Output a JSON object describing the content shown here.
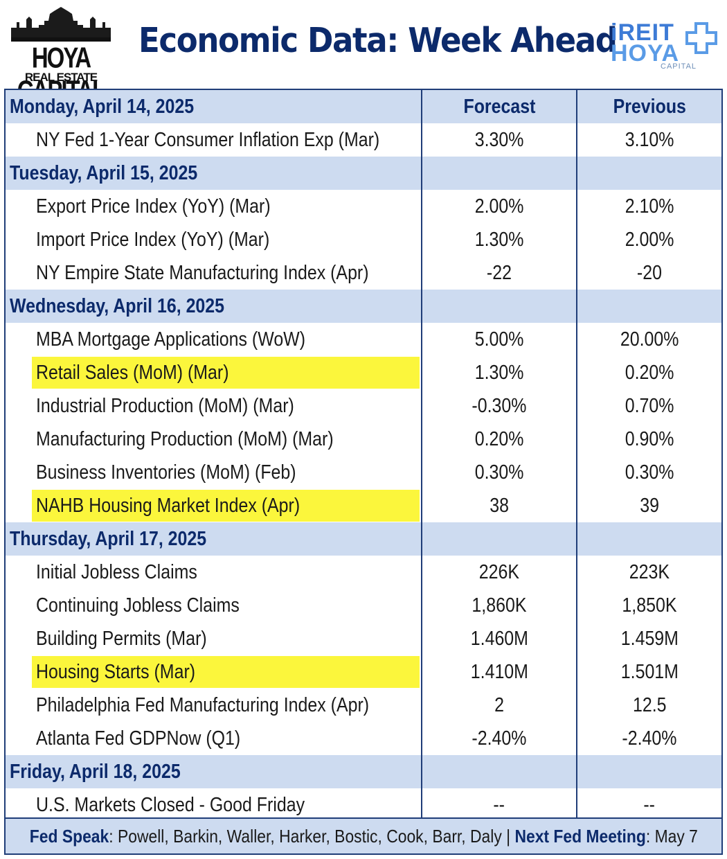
{
  "header": {
    "title": "Economic Data: Week Ahead",
    "logo_left": {
      "line1": "HOYA CAPITAL",
      "line2": "REAL ESTATE"
    },
    "logo_right": {
      "line1": "iREIT",
      "line2": "HOYA",
      "line3": "CAPITAL"
    }
  },
  "colors": {
    "title": "#0c2a6b",
    "day_row_bg": "#cddbf0",
    "highlight": "#fbf63c",
    "border": "#1f3d78"
  },
  "columns": {
    "forecast": "Forecast",
    "previous": "Previous"
  },
  "days": [
    {
      "label": "Monday, April 14, 2025",
      "events": [
        {
          "name": "NY Fed 1-Year Consumer Inflation Exp (Mar)",
          "forecast": "3.30%",
          "previous": "3.10%",
          "highlight": false
        }
      ]
    },
    {
      "label": "Tuesday, April 15, 2025",
      "events": [
        {
          "name": "Export Price Index (YoY) (Mar)",
          "forecast": "2.00%",
          "previous": "2.10%",
          "highlight": false
        },
        {
          "name": "Import Price Index (YoY) (Mar)",
          "forecast": "1.30%",
          "previous": "2.00%",
          "highlight": false
        },
        {
          "name": "NY Empire State Manufacturing Index (Apr)",
          "forecast": "-22",
          "previous": "-20",
          "highlight": false
        }
      ]
    },
    {
      "label": "Wednesday, April 16, 2025",
      "events": [
        {
          "name": "MBA Mortgage Applications (WoW)",
          "forecast": "5.00%",
          "previous": "20.00%",
          "highlight": false
        },
        {
          "name": "Retail Sales (MoM) (Mar)",
          "forecast": "1.30%",
          "previous": "0.20%",
          "highlight": true
        },
        {
          "name": "Industrial Production (MoM) (Mar)",
          "forecast": "-0.30%",
          "previous": "0.70%",
          "highlight": false
        },
        {
          "name": "Manufacturing Production (MoM) (Mar)",
          "forecast": "0.20%",
          "previous": "0.90%",
          "highlight": false
        },
        {
          "name": "Business Inventories (MoM) (Feb)",
          "forecast": "0.30%",
          "previous": "0.30%",
          "highlight": false
        },
        {
          "name": "NAHB Housing Market Index (Apr)",
          "forecast": "38",
          "previous": "39",
          "highlight": true
        }
      ]
    },
    {
      "label": "Thursday, April 17, 2025",
      "events": [
        {
          "name": "Initial Jobless Claims",
          "forecast": "226K",
          "previous": "223K",
          "highlight": false
        },
        {
          "name": "Continuing Jobless Claims",
          "forecast": "1,860K",
          "previous": "1,850K",
          "highlight": false
        },
        {
          "name": "Building Permits (Mar)",
          "forecast": "1.460M",
          "previous": "1.459M",
          "highlight": false
        },
        {
          "name": "Housing Starts (Mar)",
          "forecast": "1.410M",
          "previous": "1.501M",
          "highlight": true
        },
        {
          "name": "Philadelphia Fed Manufacturing Index (Apr)",
          "forecast": "2",
          "previous": "12.5",
          "highlight": false
        },
        {
          "name": "Atlanta Fed GDPNow (Q1)",
          "forecast": "-2.40%",
          "previous": "-2.40%",
          "highlight": false
        }
      ]
    },
    {
      "label": "Friday, April 18, 2025",
      "events": [
        {
          "name": "U.S. Markets Closed - Good Friday",
          "forecast": "--",
          "previous": "--",
          "highlight": false
        }
      ]
    }
  ],
  "footer": {
    "fed_speak_label": "Fed Speak",
    "fed_speak_text": ": Powell, Barkin, Waller, Harker, Bostic, Cook, Barr, Daly | ",
    "next_meeting_label": "Next Fed Meeting",
    "next_meeting_text": ": May 7"
  }
}
